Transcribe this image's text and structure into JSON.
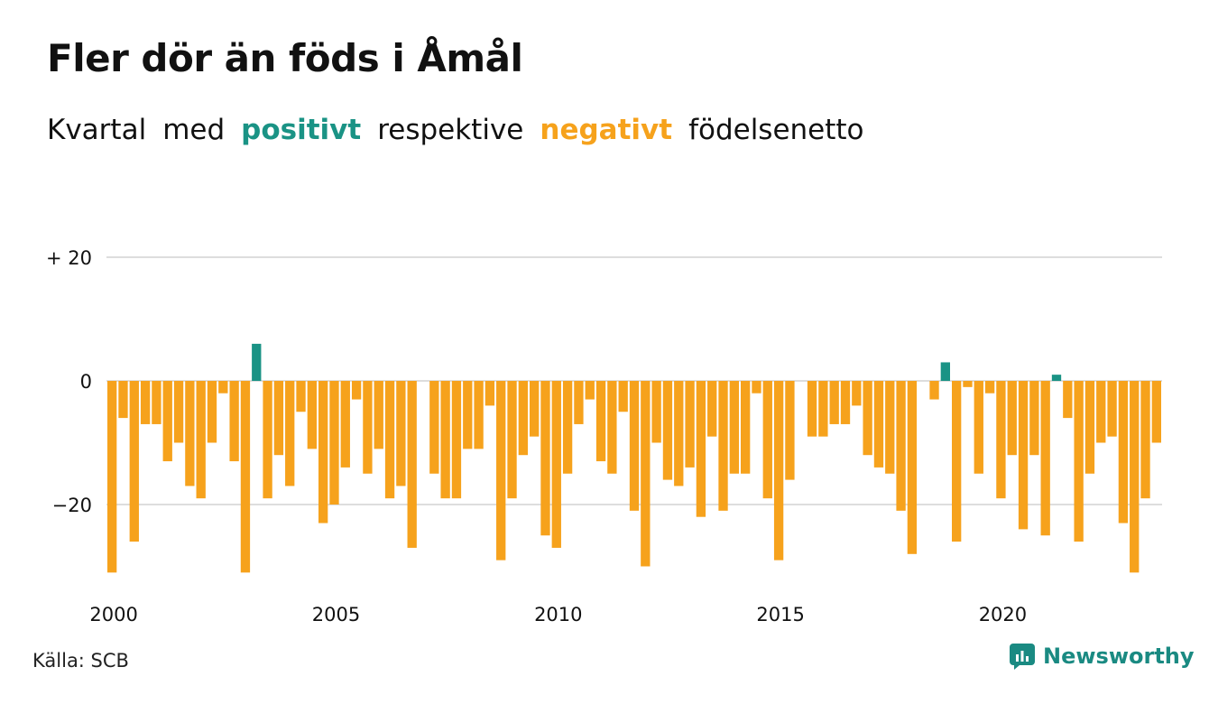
{
  "title": "Fler dör än föds i Åmål",
  "subtitle": {
    "w1": "Kvartal",
    "w2": "med",
    "positive": "positivt",
    "w3": "respektive",
    "negative": "negativt",
    "w4": "födelsenetto"
  },
  "colors": {
    "positive": "#1a9385",
    "negative": "#f6a21c",
    "grid": "#dddddd",
    "text": "#111111"
  },
  "source": "Källa: SCB",
  "brand": {
    "name": "Newsworthy",
    "icon": "newsworthy-logo-icon"
  },
  "chart_data": {
    "type": "bar",
    "title": "Fler dör än föds i Åmål",
    "x_tick_labels": [
      "2000",
      "2005",
      "2010",
      "2015",
      "2020"
    ],
    "y_ticks": [
      20,
      0,
      -20
    ],
    "y_tick_labels": [
      "+ 20",
      "0",
      "−20"
    ],
    "ylim": [
      -32,
      21
    ],
    "grid": true,
    "start": "2000 Q1",
    "values": [
      -31,
      -6,
      -26,
      -7,
      -7,
      -13,
      -10,
      -17,
      -19,
      -10,
      -2,
      -13,
      -31,
      6,
      -19,
      -12,
      -17,
      -5,
      -11,
      -23,
      -20,
      -14,
      -3,
      -15,
      -11,
      -19,
      -17,
      -27,
      0,
      -15,
      -19,
      -19,
      -11,
      -11,
      -4,
      -29,
      -19,
      -12,
      -9,
      -25,
      -27,
      -15,
      -7,
      -3,
      -13,
      -15,
      -5,
      -21,
      -30,
      -10,
      -16,
      -17,
      -14,
      -22,
      -9,
      -21,
      -15,
      -15,
      -2,
      -19,
      -29,
      -16,
      0,
      -9,
      -9,
      -7,
      -7,
      -4,
      -12,
      -14,
      -15,
      -21,
      -28,
      0,
      -3,
      3,
      -26,
      -1,
      -15,
      -2,
      -19,
      -12,
      -24,
      -12,
      -25,
      1,
      -6,
      -26,
      -15,
      -10,
      -9,
      -23,
      -31,
      -19,
      -10
    ]
  }
}
